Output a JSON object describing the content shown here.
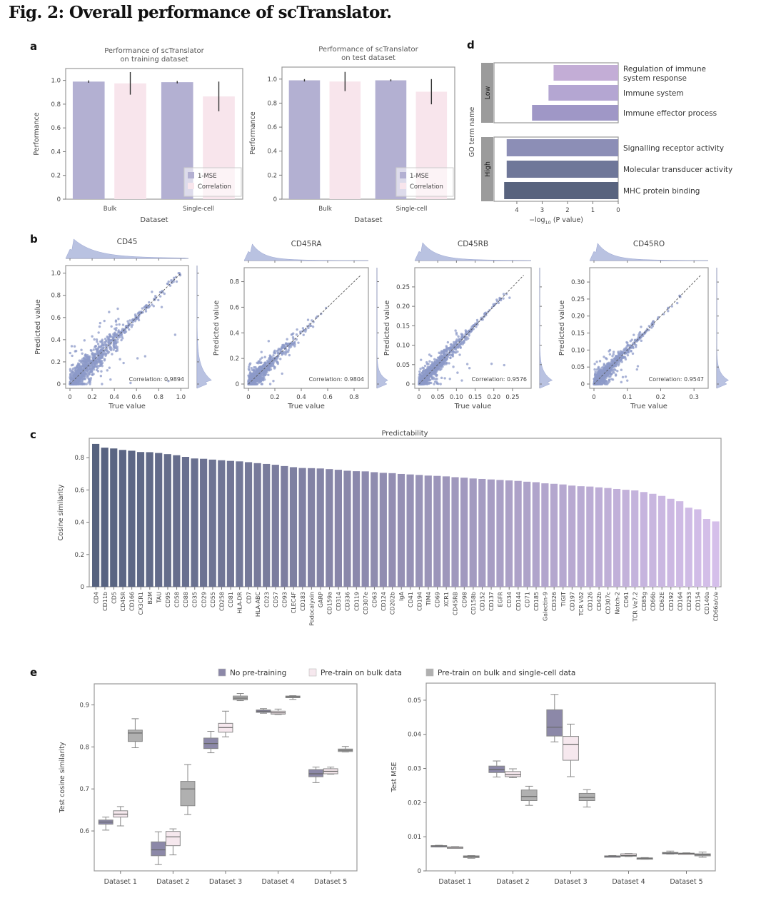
{
  "figure_title": "Fig. 2: Overall performance of scTranslator.",
  "panel_letters": {
    "a": "a",
    "b": "b",
    "c": "c",
    "d": "d",
    "e": "e"
  },
  "colors": {
    "one_mse": "#b3b0d2",
    "correlation": "#f8e5ec",
    "scatter": "#8c99c8",
    "bar_dark": "#56627f",
    "bar_light": "#d5bfea",
    "no_pretrain": "#8c88a8",
    "pretrain_bulk": "#f6e8ee",
    "pretrain_bulk_sc": "#b0b0b0"
  },
  "chart_data": [
    {
      "id": "a-train",
      "type": "bar",
      "title": "Performance of scTranslator\non training dataset",
      "xlabel": "Dataset",
      "ylabel": "Performance",
      "ylim": [
        0,
        1.1
      ],
      "yticks": [
        "0",
        "0.2",
        "0.4",
        "0.6",
        "0.8",
        "1.0"
      ],
      "categories": [
        "Bulk",
        "Single-cell"
      ],
      "series": [
        {
          "name": "1-MSE",
          "values": [
            0.99,
            0.985
          ],
          "err": [
            0.01,
            0.01
          ]
        },
        {
          "name": "Correlation",
          "values": [
            0.975,
            0.865
          ],
          "err": [
            0.095,
            0.125
          ]
        }
      ],
      "legend": "bottom-right"
    },
    {
      "id": "a-test",
      "type": "bar",
      "title": "Performance of scTranslator\non test dataset",
      "xlabel": "Dataset",
      "ylabel": "Performance",
      "ylim": [
        0,
        1.1
      ],
      "yticks": [
        "0",
        "0.2",
        "0.4",
        "0.6",
        "0.8",
        "1.0"
      ],
      "categories": [
        "Bulk",
        "Single-cell"
      ],
      "series": [
        {
          "name": "1-MSE",
          "values": [
            0.99,
            0.99
          ],
          "err": [
            0.01,
            0.008
          ]
        },
        {
          "name": "Correlation",
          "values": [
            0.98,
            0.895
          ],
          "err": [
            0.08,
            0.105
          ]
        }
      ],
      "legend": "bottom-right"
    },
    {
      "id": "d-go",
      "type": "bar",
      "orientation": "horizontal",
      "xlabel": "−log10 (P value)",
      "ylabel": "GO term name",
      "xlim": [
        0,
        4.9
      ],
      "xticks": [
        "4",
        "3",
        "2",
        "1",
        "0"
      ],
      "x_inverted": true,
      "groups": [
        {
          "name": "Low",
          "terms": [
            {
              "label": "Regulation of immune\nsystem response",
              "value": 2.55
            },
            {
              "label": "Immune system",
              "value": 2.75
            },
            {
              "label": "Immune effector process",
              "value": 3.4
            }
          ]
        },
        {
          "name": "High",
          "terms": [
            {
              "label": "Signalling receptor activity",
              "value": 4.4
            },
            {
              "label": "Molecular transducer activity",
              "value": 4.4
            },
            {
              "label": "MHC protein binding",
              "value": 4.5
            }
          ]
        }
      ]
    },
    {
      "id": "b-cd45",
      "type": "scatter",
      "title": "CD45",
      "xlabel": "True value",
      "ylabel": "Predicted value",
      "lim": [
        0,
        1.0
      ],
      "ticks": [
        "0",
        "0.2",
        "0.4",
        "0.6",
        "0.8",
        "1.0"
      ],
      "tickvals": [
        0,
        0.2,
        0.4,
        0.6,
        0.8,
        1.0
      ],
      "annotation": "Correlation: 0.9894",
      "correlation": 0.9894,
      "spread": 0.11,
      "n_points": 900,
      "skew": 0.18
    },
    {
      "id": "b-cd45ra",
      "type": "scatter",
      "title": "CD45RA",
      "xlabel": "True value",
      "ylabel": "Predicted value",
      "lim": [
        0,
        0.85
      ],
      "ticks": [
        "0",
        "0.2",
        "0.4",
        "0.6",
        "0.8"
      ],
      "tickvals": [
        0,
        0.2,
        0.4,
        0.6,
        0.8
      ],
      "annotation": "Correlation: 0.9804",
      "correlation": 0.9804,
      "spread": 0.06,
      "n_points": 700,
      "skew": 0.08
    },
    {
      "id": "b-cd45rb",
      "type": "scatter",
      "title": "CD45RB",
      "xlabel": "True value",
      "ylabel": "Predicted value",
      "lim": [
        0,
        0.28
      ],
      "ticks": [
        "0",
        "0.05",
        "0.10",
        "0.15",
        "0.20",
        "0.25"
      ],
      "tickvals": [
        0,
        0.05,
        0.1,
        0.15,
        0.2,
        0.25
      ],
      "annotation": "Correlation: 0.9576",
      "correlation": 0.9576,
      "spread": 0.018,
      "n_points": 900,
      "skew": 0.035
    },
    {
      "id": "b-cd45ro",
      "type": "scatter",
      "title": "CD45RO",
      "xlabel": "True value",
      "ylabel": "Predicted value",
      "lim": [
        0,
        0.32
      ],
      "ticks": [
        "0",
        "0.1",
        "0.2",
        "0.3"
      ],
      "tickvals": [
        0,
        0.1,
        0.2,
        0.3
      ],
      "yticks": [
        "0",
        "0.05",
        "0.10",
        "0.15",
        "0.20",
        "0.25",
        "0.30"
      ],
      "ytickvals": [
        0,
        0.05,
        0.1,
        0.15,
        0.2,
        0.25,
        0.3
      ],
      "annotation": "Correlation: 0.9547",
      "correlation": 0.9547,
      "spread": 0.018,
      "n_points": 800,
      "skew": 0.035
    },
    {
      "id": "c-predictability",
      "type": "bar",
      "title": "Predictability",
      "ylabel": "Cosine similarity",
      "ylim": [
        0,
        0.92
      ],
      "yticks": [
        "0",
        "0.2",
        "0.4",
        "0.6",
        "0.8"
      ],
      "categories": [
        "CD4",
        "CD11b",
        "CD5",
        "CD45R",
        "CD166",
        "CX3CR1",
        "B2M",
        "TAU",
        "CD95",
        "CD58",
        "CD88",
        "CD35",
        "CD29",
        "CD55",
        "CD258",
        "CD81",
        "HLA-DR",
        "CD7",
        "HLA-ABC",
        "CD23",
        "CD57",
        "CD93",
        "CLEC4F",
        "CD183",
        "Podocalyxin",
        "GARP",
        "CD159a",
        "CD314",
        "CD336",
        "CD119",
        "CD307e",
        "CD63",
        "CD124",
        "CD202b",
        "IgA",
        "CD41",
        "CD194",
        "TIM4",
        "CD69",
        "XCR1",
        "CD45RB",
        "CD98",
        "CD158b",
        "CD152",
        "CD137",
        "EGFR",
        "CD34",
        "CD144",
        "CD71",
        "CD185",
        "Galectin-9",
        "CD326",
        "TIGIT",
        "CD197",
        "TCR Vδ2",
        "CD126",
        "CD42b",
        "CD307c",
        "Notch-2",
        "CD61",
        "TCR Vα7.2",
        "CD85g",
        "CD66b",
        "CD62E",
        "CD192",
        "CD164",
        "CD253",
        "CD154",
        "CD140a",
        "CD66a/c/e"
      ],
      "values": [
        0.885,
        0.862,
        0.857,
        0.848,
        0.843,
        0.835,
        0.834,
        0.829,
        0.822,
        0.815,
        0.805,
        0.795,
        0.793,
        0.788,
        0.784,
        0.78,
        0.777,
        0.772,
        0.766,
        0.761,
        0.756,
        0.748,
        0.741,
        0.736,
        0.735,
        0.733,
        0.729,
        0.725,
        0.719,
        0.716,
        0.715,
        0.71,
        0.706,
        0.704,
        0.699,
        0.696,
        0.693,
        0.689,
        0.687,
        0.684,
        0.679,
        0.676,
        0.671,
        0.668,
        0.665,
        0.662,
        0.659,
        0.656,
        0.651,
        0.648,
        0.641,
        0.638,
        0.634,
        0.627,
        0.623,
        0.621,
        0.616,
        0.612,
        0.606,
        0.601,
        0.597,
        0.587,
        0.576,
        0.563,
        0.545,
        0.53,
        0.49,
        0.48,
        0.42,
        0.405
      ]
    },
    {
      "id": "e-cosine",
      "type": "box",
      "ylabel": "Test cosine similarity",
      "ylim": [
        0.505,
        0.95
      ],
      "yticks": [
        "0.6",
        "0.7",
        "0.8",
        "0.9"
      ],
      "ytickvals": [
        0.6,
        0.7,
        0.8,
        0.9
      ],
      "categories": [
        "Dataset 1",
        "Dataset 2",
        "Dataset 3",
        "Dataset 4",
        "Dataset 5"
      ],
      "series": [
        {
          "name": "No pre-training",
          "boxes": [
            {
              "min": 0.602,
              "q1": 0.616,
              "med": 0.621,
              "q3": 0.626,
              "max": 0.633
            },
            {
              "min": 0.52,
              "q1": 0.541,
              "med": 0.555,
              "q3": 0.574,
              "max": 0.598
            },
            {
              "min": 0.786,
              "q1": 0.796,
              "med": 0.808,
              "q3": 0.821,
              "max": 0.837
            },
            {
              "min": 0.88,
              "q1": 0.882,
              "med": 0.885,
              "q3": 0.888,
              "max": 0.891
            },
            {
              "min": 0.715,
              "q1": 0.729,
              "med": 0.736,
              "q3": 0.746,
              "max": 0.752
            }
          ]
        },
        {
          "name": "Pre-train on bulk data",
          "boxes": [
            {
              "min": 0.612,
              "q1": 0.633,
              "med": 0.64,
              "q3": 0.648,
              "max": 0.658
            },
            {
              "min": 0.543,
              "q1": 0.565,
              "med": 0.586,
              "q3": 0.599,
              "max": 0.605
            },
            {
              "min": 0.824,
              "q1": 0.835,
              "med": 0.846,
              "q3": 0.856,
              "max": 0.885
            },
            {
              "min": 0.877,
              "q1": 0.878,
              "med": 0.881,
              "q3": 0.885,
              "max": 0.89
            },
            {
              "min": 0.735,
              "q1": 0.736,
              "med": 0.742,
              "q3": 0.748,
              "max": 0.752
            }
          ]
        },
        {
          "name": "Pre-train on bulk and single-cell data",
          "boxes": [
            {
              "min": 0.798,
              "q1": 0.813,
              "med": 0.833,
              "q3": 0.84,
              "max": 0.867
            },
            {
              "min": 0.639,
              "q1": 0.66,
              "med": 0.7,
              "q3": 0.718,
              "max": 0.758
            },
            {
              "min": 0.91,
              "q1": 0.912,
              "med": 0.916,
              "q3": 0.921,
              "max": 0.927
            },
            {
              "min": 0.913,
              "q1": 0.917,
              "med": 0.919,
              "q3": 0.921,
              "max": 0.922
            },
            {
              "min": 0.788,
              "q1": 0.789,
              "med": 0.792,
              "q3": 0.795,
              "max": 0.801
            }
          ]
        }
      ],
      "legend": "top"
    },
    {
      "id": "e-mse",
      "type": "box",
      "ylabel": "Test MSE",
      "ylim": [
        0,
        0.055
      ],
      "yticks": [
        "0",
        "0.01",
        "0.02",
        "0.03",
        "0.04",
        "0.05"
      ],
      "ytickvals": [
        0,
        0.01,
        0.02,
        0.03,
        0.04,
        0.05
      ],
      "categories": [
        "Dataset 1",
        "Dataset 2",
        "Dataset 3",
        "Dataset 4",
        "Dataset 5"
      ],
      "series": [
        {
          "name": "No pre-training",
          "boxes": [
            {
              "min": 0.007,
              "q1": 0.0071,
              "med": 0.0073,
              "q3": 0.0074,
              "max": 0.0075
            },
            {
              "min": 0.0275,
              "q1": 0.0288,
              "med": 0.0297,
              "q3": 0.0307,
              "max": 0.0322
            },
            {
              "min": 0.0378,
              "q1": 0.0395,
              "med": 0.0421,
              "q3": 0.0472,
              "max": 0.0517
            },
            {
              "min": 0.0041,
              "q1": 0.0042,
              "med": 0.0043,
              "q3": 0.0044,
              "max": 0.0045
            },
            {
              "min": 0.0049,
              "q1": 0.005,
              "med": 0.0052,
              "q3": 0.0054,
              "max": 0.0058
            }
          ]
        },
        {
          "name": "Pre-train on bulk data",
          "boxes": [
            {
              "min": 0.0066,
              "q1": 0.0067,
              "med": 0.0069,
              "q3": 0.007,
              "max": 0.0071
            },
            {
              "min": 0.0273,
              "q1": 0.0276,
              "med": 0.0282,
              "q3": 0.0291,
              "max": 0.0299
            },
            {
              "min": 0.0276,
              "q1": 0.0324,
              "med": 0.0371,
              "q3": 0.0394,
              "max": 0.043
            },
            {
              "min": 0.0042,
              "q1": 0.0043,
              "med": 0.0045,
              "q3": 0.005,
              "max": 0.0051
            },
            {
              "min": 0.0049,
              "q1": 0.005,
              "med": 0.0051,
              "q3": 0.0052,
              "max": 0.0053
            }
          ]
        },
        {
          "name": "Pre-train on bulk and single-cell data",
          "boxes": [
            {
              "min": 0.0037,
              "q1": 0.0039,
              "med": 0.0042,
              "q3": 0.0044,
              "max": 0.0045
            },
            {
              "min": 0.0192,
              "q1": 0.0206,
              "med": 0.0218,
              "q3": 0.0237,
              "max": 0.0248
            },
            {
              "min": 0.0187,
              "q1": 0.0206,
              "med": 0.0215,
              "q3": 0.0227,
              "max": 0.0238
            },
            {
              "min": 0.0034,
              "q1": 0.0035,
              "med": 0.0037,
              "q3": 0.0038,
              "max": 0.0039
            },
            {
              "min": 0.004,
              "q1": 0.0044,
              "med": 0.0047,
              "q3": 0.005,
              "max": 0.0055
            }
          ]
        }
      ]
    }
  ]
}
